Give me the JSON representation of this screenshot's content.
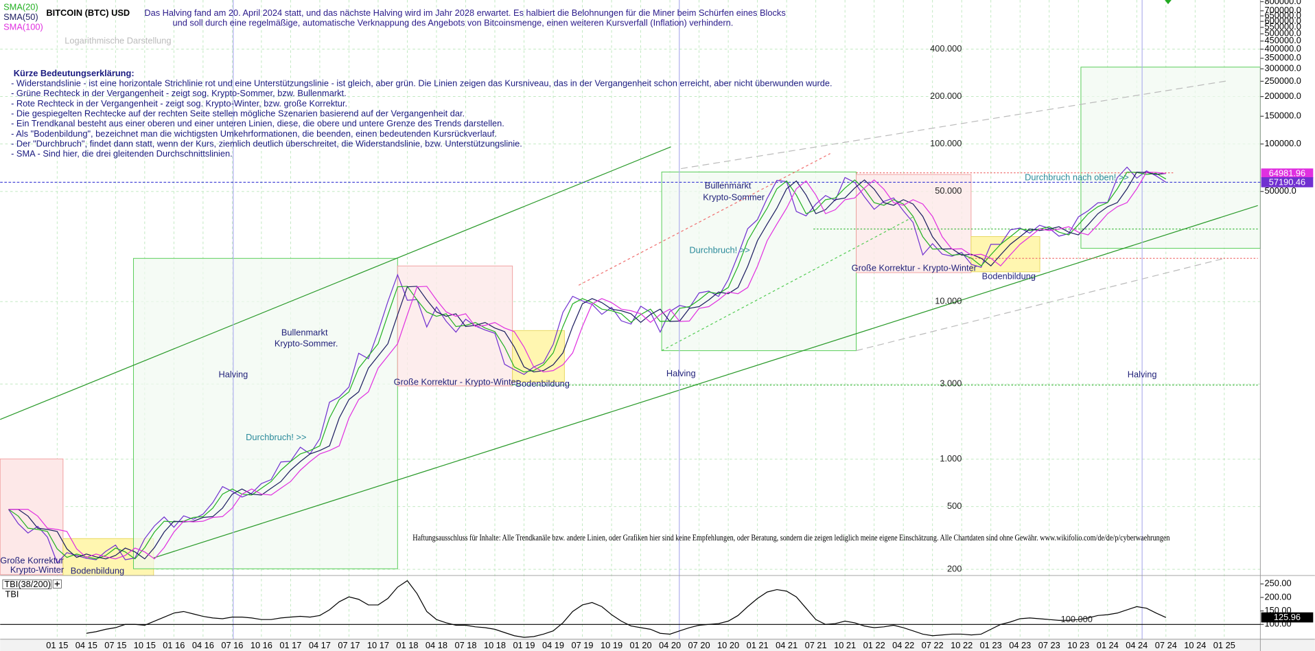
{
  "chart_data": [
    {
      "type": "line",
      "title": "BITCOIN (BTC) USD",
      "subtitle": [
        "Das Halving fand am 20. April 2024 statt, und das nächste Halving wird im Jahr 2028 erwartet. Es halbiert die Belohnungen für die Miner beim Schürfen eines Blocks",
        "und soll durch eine regelmäßige, automatische Verknappung des Angebots von Bitcoinsmenge, einen weiteren Kursverfall (Inflation) verhindern."
      ],
      "scale_note": "Logarithmische Darstellung",
      "legend_title": "Kürze Bedeutungserklärung:",
      "notes": [
        "- Widerstandslinie - ist eine horizontale Strichlinie rot und eine Unterstützungslinie - ist gleich, aber grün. Die Linien zeigen das Kursniveau, das in der Vergangenheit schon erreicht, aber nicht überwunden wurde.",
        "- Grüne Rechteck in der Vergangenheit - zeigt sog. Krypto-Sommer, bzw. Bullenmarkt.",
        "- Rote Rechteck in der Vergangenheit - zeigt sog. Krypto-Winter, bzw. große Korrektur.",
        "- Die gespiegelten Rechtecke auf der rechten Seite stellen mögliche Szenarien basierend auf der Vergangenheit dar.",
        "- Ein Trendkanal besteht aus einer oberen und einer unteren Linien, diese, die obere und untere Grenze des Trends darstellen.",
        "- Als \"Bodenbildung\", bezeichnet man die wichtigsten Umkehrformationen, die beenden, einen bedeutenden Kursrückverlauf.",
        "- Der \"Durchbruch\", findet dann statt, wenn der Kurs, ziemlich deutlich überschreitet, die Widerstandslinie, bzw. Unterstützungslinie.",
        "- SMA - Sind hier, die drei gleitenden Durchschnittslinien."
      ],
      "annotations": [
        "Große Korrektur",
        "Krypto-Winter",
        "Bodenbildung",
        "Halving",
        "Durchbruch! >>",
        "Bullenmarkt",
        "Krypto-Sommer.",
        "Große Korrektur - Krypto-Winter",
        "Bodenbildung",
        "Halving",
        "Durchbruch! >>",
        "Bullenmarkt",
        "Krypto-Sommer",
        "Große Korrektur - Krypto-Winter",
        "Bodenbildung",
        "Durchbruch nach oben! >>",
        "Halving"
      ],
      "disclaimer": "Haftungsausschluss für Inhalte: Alle Trendkanäle bzw. andere Linien, oder Grafiken hier sind keine Empfehlungen, oder Beratung, sondern die zeigen lediglich meine eigene Einschätzung. Alle Chartdaten sind ohne Gewähr.  www.wikifolio.com/de/de/p/cyberwaehrungen",
      "log_scale": true,
      "grid": true,
      "legend": "top-left",
      "categories": [
        null,
        null,
        null,
        null,
        null,
        "01 15",
        null,
        null,
        "04 15",
        null,
        null,
        "07 15",
        null,
        null,
        "10 15",
        null,
        null,
        "01 16",
        null,
        null,
        "04 16",
        null,
        null,
        "07 16",
        null,
        null,
        "10 16",
        null,
        null,
        "01 17",
        null,
        null,
        "04 17",
        null,
        null,
        "07 17",
        null,
        null,
        "10 17",
        null,
        null,
        "01 18",
        null,
        null,
        "04 18",
        null,
        null,
        "07 18",
        null,
        null,
        "10 18",
        null,
        null,
        "01 19",
        null,
        null,
        "04 19",
        null,
        null,
        "07 19",
        null,
        null,
        "10 19",
        null,
        null,
        "01 20",
        null,
        null,
        "04 20",
        null,
        null,
        "07 20",
        null,
        null,
        "10 20",
        null,
        null,
        "01 21",
        null,
        null,
        "04 21",
        null,
        null,
        "07 21",
        null,
        null,
        "10 21",
        null,
        null,
        "01 22",
        null,
        null,
        "04 22",
        null,
        null,
        "07 22",
        null,
        null,
        "10 22",
        null,
        null,
        "01 23",
        null,
        null,
        "04 23",
        null,
        null,
        "07 23",
        null,
        null,
        "10 23",
        null,
        null,
        "01 24",
        null,
        null,
        "04 24",
        null,
        null,
        "07 24",
        null,
        null,
        "10 24",
        null,
        null,
        "01 25"
      ],
      "series": [
        {
          "color": "#7030d0",
          "values": [
            480,
            390,
            340,
            375,
            320,
            220,
            255,
            245,
            235,
            230,
            260,
            285,
            230,
            236,
            313,
            377,
            430,
            370,
            437,
            416,
            448,
            530,
            670,
            624,
            575,
            608,
            700,
            742,
            960,
            970,
            1190,
            1080,
            1350,
            2300,
            2480,
            2870,
            4700,
            4340,
            6450,
            10000,
            14800,
            10200,
            10300,
            6900,
            9240,
            7500,
            6400,
            7730,
            7000,
            6600,
            6300,
            4000,
            3700,
            3450,
            3850,
            4100,
            5350,
            8550,
            10800,
            10100,
            9600,
            8300,
            9200,
            7550,
            7200,
            9350,
            8550,
            6400,
            8650,
            9450,
            9140,
            11350,
            11650,
            10780,
            13800,
            19700,
            29000,
            33100,
            45200,
            58800,
            57700,
            37300,
            35000,
            41500,
            47100,
            43800,
            61300,
            57000,
            46300,
            38500,
            43200,
            45500,
            37700,
            31800,
            19800,
            23300,
            20000,
            19400,
            20500,
            17200,
            16500,
            23100,
            23100,
            28500,
            29300,
            27200,
            30500,
            29200,
            26000,
            27000,
            34500,
            37700,
            42300,
            42600,
            61200,
            71300,
            60700,
            67500,
            62700,
            57190.46,
            null,
            null,
            null,
            null,
            null,
            null
          ]
        },
        {
          "name": "SMA(20)",
          "color": "#22b022",
          "values": [
            480,
            435,
            365,
            358,
            348,
            270,
            238,
            250,
            240,
            233,
            245,
            273,
            258,
            233,
            275,
            345,
            404,
            400,
            404,
            427,
            432,
            489,
            600,
            647,
            600,
            592,
            654,
            721,
            851,
            965,
            1080,
            1135,
            1215,
            1825,
            2390,
            2675,
            3785,
            4520,
            5395,
            8225,
            12400,
            12500,
            10250,
            8600,
            8070,
            8370,
            6950,
            7065,
            7365,
            6800,
            6450,
            5150,
            3850,
            3575,
            3650,
            3975,
            4725,
            6950,
            9675,
            10450,
            9850,
            8950,
            8750,
            8375,
            7375,
            8275,
            8950,
            7475,
            7525,
            9050,
            9295,
            10245,
            11500,
            11215,
            12290,
            16750,
            24350,
            31050,
            39150,
            52000,
            58250,
            47500,
            36150,
            38250,
            44300,
            45450,
            52550,
            59150,
            51650,
            42400,
            40850,
            44350,
            41600,
            34750,
            25800,
            21550,
            21650,
            19700,
            19950,
            18850,
            16850,
            19800,
            23100,
            25800,
            28900,
            28250,
            28850,
            29850,
            27600,
            26500,
            30750,
            36100,
            40000,
            42450,
            51900,
            66250,
            66000,
            64100,
            65100,
            59950,
            null,
            null,
            null,
            null,
            null,
            null
          ]
        },
        {
          "name": "SMA(50)",
          "color": "#1c1c60",
          "values": [
            480,
            480,
            435,
            365,
            358,
            348,
            270,
            238,
            250,
            240,
            233,
            245,
            273,
            258,
            233,
            275,
            345,
            404,
            400,
            404,
            427,
            432,
            489,
            600,
            647,
            600,
            592,
            654,
            721,
            851,
            965,
            1080,
            1135,
            1215,
            1825,
            2390,
            2675,
            3785,
            4520,
            5395,
            8225,
            12400,
            12500,
            10250,
            8600,
            8070,
            8370,
            6950,
            7065,
            7365,
            6800,
            6450,
            5150,
            3850,
            3575,
            3650,
            3975,
            4725,
            6950,
            9675,
            10450,
            9850,
            8950,
            8750,
            8375,
            7375,
            8275,
            8950,
            7475,
            7525,
            9050,
            9295,
            10245,
            11500,
            11215,
            12290,
            16750,
            24350,
            31050,
            39150,
            52000,
            58250,
            47500,
            36150,
            38250,
            44300,
            45450,
            52550,
            59150,
            51650,
            42400,
            40850,
            44350,
            41600,
            34750,
            25800,
            21550,
            21650,
            19700,
            19950,
            18850,
            16850,
            19800,
            23100,
            25800,
            28900,
            28250,
            28850,
            29850,
            27600,
            26500,
            30750,
            36100,
            40000,
            42450,
            51900,
            66250,
            66000,
            64100,
            65100,
            null,
            null,
            null,
            null,
            null,
            null
          ]
        },
        {
          "name": "SMA(100)",
          "color": "#e030e0",
          "values": [
            480,
            480,
            480,
            435,
            365,
            358,
            348,
            270,
            238,
            250,
            240,
            233,
            245,
            273,
            258,
            233,
            275,
            345,
            404,
            400,
            404,
            427,
            432,
            489,
            600,
            647,
            600,
            592,
            654,
            721,
            851,
            965,
            1080,
            1135,
            1215,
            1825,
            2390,
            2675,
            3785,
            4520,
            5395,
            8225,
            12400,
            12500,
            10250,
            8600,
            8070,
            8370,
            6950,
            7065,
            7365,
            6800,
            6450,
            5150,
            3850,
            3575,
            3650,
            3975,
            4725,
            6950,
            9675,
            10450,
            9850,
            8950,
            8750,
            8375,
            7375,
            8275,
            8950,
            7475,
            7525,
            9050,
            9295,
            10245,
            11500,
            11215,
            12290,
            16750,
            24350,
            31050,
            39150,
            52000,
            58250,
            47500,
            36150,
            38250,
            44300,
            45450,
            52550,
            59150,
            51650,
            42400,
            40850,
            44350,
            41600,
            34750,
            25800,
            21550,
            21650,
            19700,
            19950,
            18850,
            16850,
            19800,
            23100,
            25800,
            28900,
            28250,
            28850,
            29850,
            27600,
            26500,
            30750,
            36100,
            40000,
            42450,
            51900,
            66250,
            66000,
            64981.96,
            null,
            null,
            null,
            null,
            null,
            null
          ]
        }
      ],
      "ylim": [
        185,
        800000
      ],
      "yticks": [
        {
          "value": 400000,
          "label": "400.000"
        },
        {
          "value": 200000,
          "label": "200.000"
        },
        {
          "value": 100000,
          "label": "100.000"
        },
        {
          "value": 50000,
          "label": "50.000"
        },
        {
          "value": 10000,
          "label": "10.000"
        },
        {
          "value": 3000,
          "label": "3.000"
        },
        {
          "value": 1000,
          "label": "1.000"
        },
        500,
        200
      ],
      "y2lim": [
        185,
        800000
      ],
      "y2ticks": [
        {
          "value": 800000,
          "label": "800000.0"
        },
        {
          "value": 700000,
          "label": "700000.0"
        },
        {
          "value": 650000,
          "label": "650000.0"
        },
        {
          "value": 600000,
          "label": "600000.0"
        },
        {
          "value": 550000,
          "label": "550000.0"
        },
        {
          "value": 500000,
          "label": "500000.0"
        },
        {
          "value": 450000,
          "label": "450000.0"
        },
        {
          "value": 400000,
          "label": "400000.0"
        },
        {
          "value": 350000,
          "label": "350000.0"
        },
        {
          "value": 300000,
          "label": "300000.0"
        },
        {
          "value": 250000,
          "label": "250000.0"
        },
        {
          "value": 200000,
          "label": "200000.0"
        },
        {
          "value": 150000,
          "label": "150000.0"
        },
        {
          "value": 100000,
          "label": "100000.0"
        },
        {
          "value": 50000,
          "label": "50000.0"
        }
      ]
    },
    {
      "type": "line",
      "title": "TBI(38/200)",
      "annotations": [
        "100.000"
      ],
      "baseline": 100,
      "series": [
        {
          "name": "TBI",
          "color": "#000000",
          "values": [
            null,
            null,
            null,
            null,
            null,
            null,
            null,
            null,
            67,
            73,
            82,
            88,
            100,
            100,
            97,
            112,
            127,
            142,
            148,
            139,
            130,
            124,
            121,
            127,
            127,
            124,
            118,
            118,
            124,
            127,
            130,
            127,
            133,
            154,
            184,
            202,
            193,
            172,
            172,
            196,
            238,
            262,
            214,
            148,
            118,
            106,
            97,
            97,
            91,
            88,
            82,
            70,
            58,
            52,
            55,
            64,
            76,
            106,
            148,
            172,
            181,
            166,
            136,
            112,
            94,
            88,
            82,
            67,
            64,
            76,
            88,
            97,
            100,
            103,
            112,
            133,
            166,
            196,
            220,
            229,
            223,
            202,
            160,
            118,
            100,
            103,
            112,
            106,
            94,
            88,
            91,
            97,
            88,
            76,
            64,
            58,
            61,
            64,
            64,
            61,
            64,
            82,
            100,
            109,
            121,
            124,
            121,
            118,
            115,
            115,
            118,
            124,
            133,
            136,
            142,
            154,
            166,
            160,
            142,
            125.96,
            null,
            null,
            null,
            null,
            null,
            null
          ]
        }
      ],
      "ylim": [
        45,
        275
      ],
      "yticks": [
        {
          "value": 250,
          "label": "250.00"
        },
        {
          "value": 200,
          "label": "200.00"
        },
        {
          "value": 150,
          "label": "150.00"
        },
        {
          "value": 100,
          "label": "100.00"
        }
      ]
    }
  ]
}
